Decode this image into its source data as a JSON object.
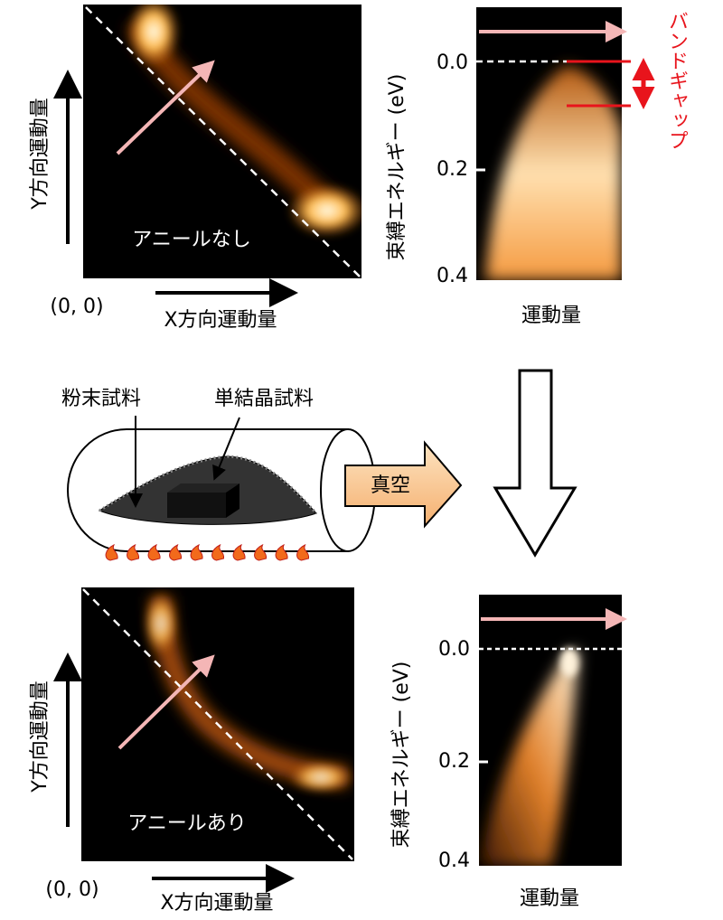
{
  "top": {
    "map_label": "アニールなし",
    "y_axis_label": "Y方向運動量",
    "x_axis_label": "X方向運動量",
    "origin_label": "(0, 0)",
    "spectrum": {
      "y_axis_label": "束縛エネルギー (eV)",
      "ticks": [
        "0.0",
        "0.2",
        "0.4"
      ],
      "x_axis_label": "運動量"
    },
    "annotation": "バンドギャップ"
  },
  "middle": {
    "powder_label": "粉末試料",
    "crystal_label": "単結晶試料",
    "vacuum_label": "真空"
  },
  "bottom": {
    "map_label": "アニールあり",
    "y_axis_label": "Y方向運動量",
    "x_axis_label": "X方向運動量",
    "origin_label": "(0, 0)",
    "spectrum": {
      "y_axis_label": "束縛エネルギー (eV)",
      "ticks": [
        "0.0",
        "0.2",
        "0.4"
      ],
      "x_axis_label": "運動量"
    }
  }
}
